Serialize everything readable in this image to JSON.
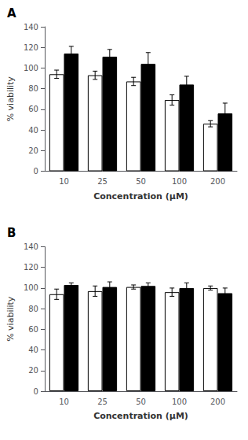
{
  "chart_data": [
    {
      "type": "bar",
      "title": "A",
      "categories": [
        "10",
        "25",
        "50",
        "100",
        "200"
      ],
      "series": [
        {
          "color": "white",
          "values": [
            94,
            93,
            87,
            69,
            46
          ],
          "errors": [
            4,
            4,
            4,
            5,
            3
          ]
        },
        {
          "color": "black",
          "values": [
            114,
            111,
            104,
            84,
            56
          ],
          "errors": [
            7,
            7,
            11,
            8,
            10
          ]
        }
      ],
      "ylim": [
        0,
        140
      ],
      "yticks": [
        0,
        20,
        40,
        60,
        80,
        100,
        120,
        140
      ],
      "ylabel": "% viability",
      "xlabel": "Concentration (μM)",
      "grid": false
    },
    {
      "type": "bar",
      "title": "B",
      "categories": [
        "10",
        "25",
        "50",
        "100",
        "200"
      ],
      "series": [
        {
          "color": "white",
          "values": [
            94,
            97,
            101,
            96,
            100
          ],
          "errors": [
            5,
            5,
            2,
            4,
            2
          ]
        },
        {
          "color": "black",
          "values": [
            103,
            101,
            102,
            100,
            95
          ],
          "errors": [
            2,
            5,
            3,
            5,
            5
          ]
        }
      ],
      "ylim": [
        0,
        140
      ],
      "yticks": [
        0,
        20,
        40,
        60,
        80,
        100,
        120,
        140
      ],
      "ylabel": "% viability",
      "xlabel": "Concentration (μM)",
      "grid": false
    }
  ]
}
